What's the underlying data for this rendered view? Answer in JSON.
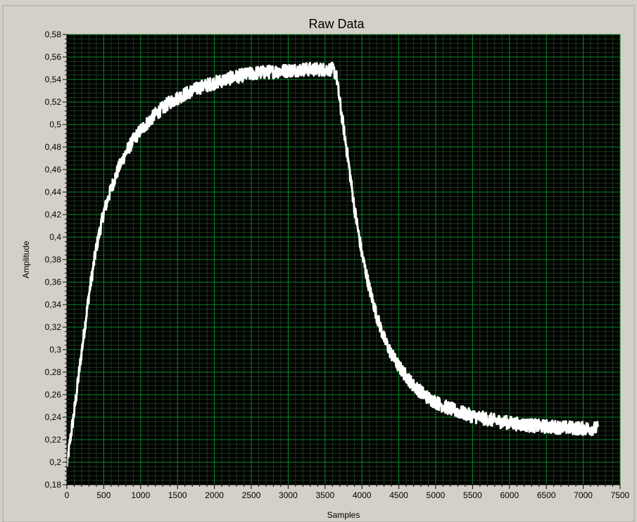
{
  "chart_data": {
    "type": "line",
    "title": "Raw Data",
    "xlabel": "Samples",
    "ylabel": "Amplitude",
    "xlim": [
      0,
      7500
    ],
    "ylim": [
      0.18,
      0.58
    ],
    "grid": true,
    "x_ticks": [
      0,
      500,
      1000,
      1500,
      2000,
      2500,
      3000,
      3500,
      4000,
      4500,
      5000,
      5500,
      6000,
      6500,
      7000,
      7500
    ],
    "x_tick_labels": [
      "0",
      "500",
      "1000",
      "1500",
      "2000",
      "2500",
      "3000",
      "3500",
      "4000",
      "4500",
      "5000",
      "5500",
      "6000",
      "6500",
      "7000",
      "7500"
    ],
    "y_ticks": [
      0.18,
      0.2,
      0.22,
      0.24,
      0.26,
      0.28,
      0.3,
      0.32,
      0.34,
      0.36,
      0.38,
      0.4,
      0.42,
      0.44,
      0.46,
      0.48,
      0.5,
      0.52,
      0.54,
      0.56,
      0.58
    ],
    "y_tick_labels": [
      "0,18",
      "0,2",
      "0,22",
      "0,24",
      "0,26",
      "0,28",
      "0,3",
      "0,32",
      "0,34",
      "0,36",
      "0,38",
      "0,4",
      "0,42",
      "0,44",
      "0,46",
      "0,48",
      "0,5",
      "0,52",
      "0,54",
      "0,56",
      "0,58"
    ],
    "colors": {
      "plot_background": "#000000",
      "major_grid": "#0a8a2a",
      "minor_grid": "#1c3a1c",
      "series": "#ffffff",
      "frame": "#d4d0c8"
    },
    "series": [
      {
        "x": [
          0,
          50,
          100,
          200,
          300,
          400,
          500,
          600,
          700,
          800,
          900,
          1000,
          1200,
          1400,
          1600,
          1800,
          2000,
          2200,
          2400,
          2600,
          2800,
          3000,
          3200,
          3400,
          3600,
          3650,
          3700,
          3800,
          3900,
          4000,
          4100,
          4200,
          4300,
          4400,
          4500,
          4700,
          4900,
          5100,
          5300,
          5500,
          5800,
          6100,
          6400,
          6700,
          7000,
          7200
        ],
        "y": [
          0.197,
          0.222,
          0.245,
          0.298,
          0.349,
          0.391,
          0.422,
          0.443,
          0.461,
          0.475,
          0.486,
          0.495,
          0.509,
          0.52,
          0.527,
          0.533,
          0.537,
          0.541,
          0.544,
          0.546,
          0.547,
          0.548,
          0.549,
          0.549,
          0.549,
          0.545,
          0.52,
          0.475,
          0.425,
          0.385,
          0.355,
          0.33,
          0.31,
          0.296,
          0.285,
          0.268,
          0.257,
          0.25,
          0.245,
          0.241,
          0.237,
          0.234,
          0.232,
          0.231,
          0.23,
          0.23
        ]
      }
    ]
  }
}
